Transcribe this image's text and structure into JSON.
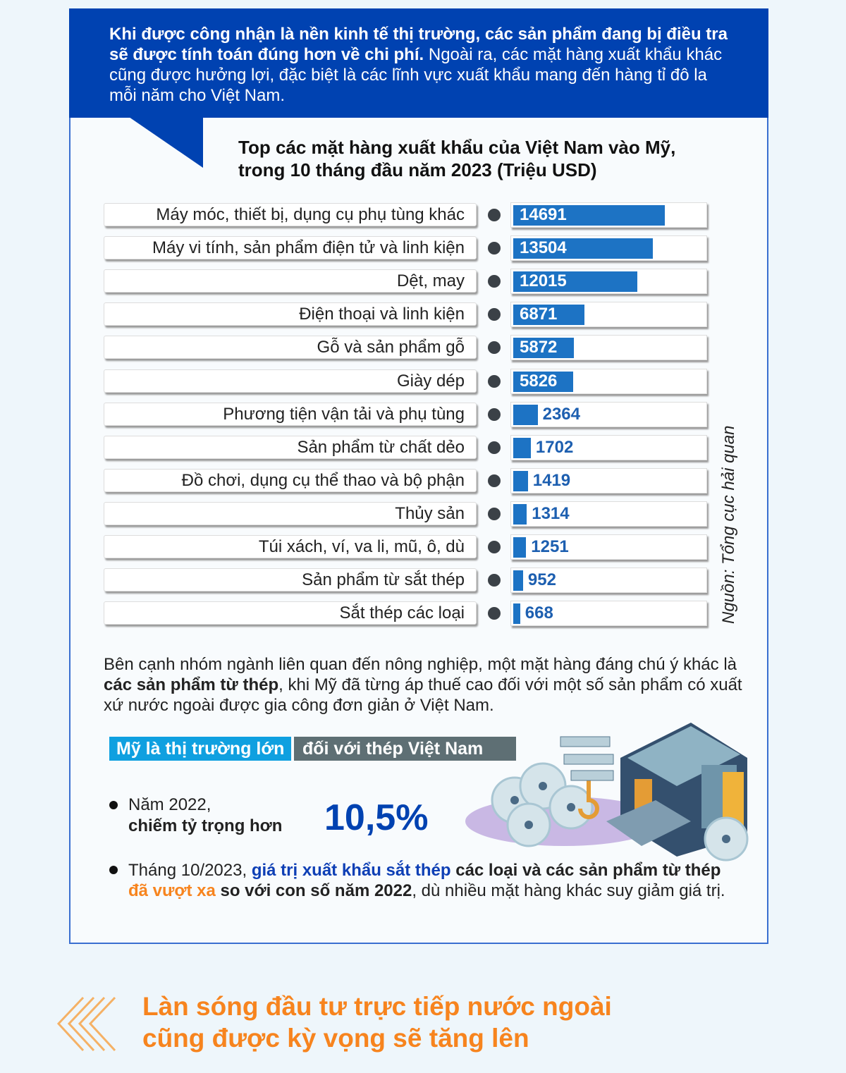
{
  "header": {
    "bold_text": "Khi được công nhận là nền kinh tế thị trường, các sản phẩm đang bị điều tra sẽ được tính toán đúng hơn về chi phí.",
    "normal_text": " Ngoài ra, các mặt hàng xuất khẩu khác cũng được hưởng lợi, đặc biệt là các lĩnh vực xuất khẩu mang đến hàng tỉ đô la mỗi năm cho Việt Nam."
  },
  "chart_data": {
    "type": "bar",
    "title": "Top các mặt hàng xuất khẩu của Việt Nam vào Mỹ, trong 10 tháng đầu năm 2023 (Triệu USD)",
    "title_line1": "Top các mặt hàng xuất khẩu của Việt Nam vào Mỹ,",
    "title_line2": "trong 10 tháng đầu năm 2023 (Triệu USD)",
    "orientation": "horizontal",
    "categories": [
      "Máy móc, thiết bị, dụng cụ phụ tùng khác",
      "Máy vi tính, sản phẩm điện tử và linh kiện",
      "Dệt, may",
      "Điện thoại và linh kiện",
      "Gỗ và sản phẩm gỗ",
      "Giày dép",
      "Phương tiện vận tải và phụ tùng",
      "Sản phẩm từ chất dẻo",
      "Đồ chơi, dụng cụ thể thao và bộ phận",
      "Thủy sản",
      "Túi xách, ví, va li, mũ, ô, dù",
      "Sản phẩm từ sắt thép",
      "Sắt thép các loại"
    ],
    "values": [
      14691,
      13504,
      12015,
      6871,
      5872,
      5826,
      2364,
      1702,
      1419,
      1314,
      1251,
      952,
      668
    ],
    "bar_color": "#1d73c4",
    "source": "Nguồn: Tổng cục hải quan"
  },
  "paragraph": {
    "p1": "Bên cạnh nhóm ngành liên quan đến nông nghiệp, một mặt hàng đáng chú ý khác là ",
    "bold": "các sản phẩm từ thép",
    "p2": ", khi Mỹ đã từng áp thuế cao đối với một số sản phẩm có xuất xứ nước ngoài được gia công đơn giản ở Việt Nam."
  },
  "steel": {
    "tag1": "Mỹ là thị trường lớn",
    "tag2": "đối với thép Việt Nam",
    "b1_line1": "Năm 2022,",
    "b1_line2": "chiếm tỷ trọng hơn",
    "percent": "10,5%",
    "b2_a": "Tháng 10/2023, ",
    "b2_blue": "giá trị xuất khẩu sắt thép",
    "b2_b": " các loại và các sản phẩm từ thép ",
    "b2_orange": "đã vượt xa",
    "b2_c": " so với con số năm 2022",
    "b2_d": ", dù nhiều mặt hàng khác suy giảm giá trị."
  },
  "footer": {
    "line1": "Làn sóng đầu tư trực tiếp nước ngoài",
    "line2": "cũng được kỳ vọng sẽ tăng lên"
  }
}
